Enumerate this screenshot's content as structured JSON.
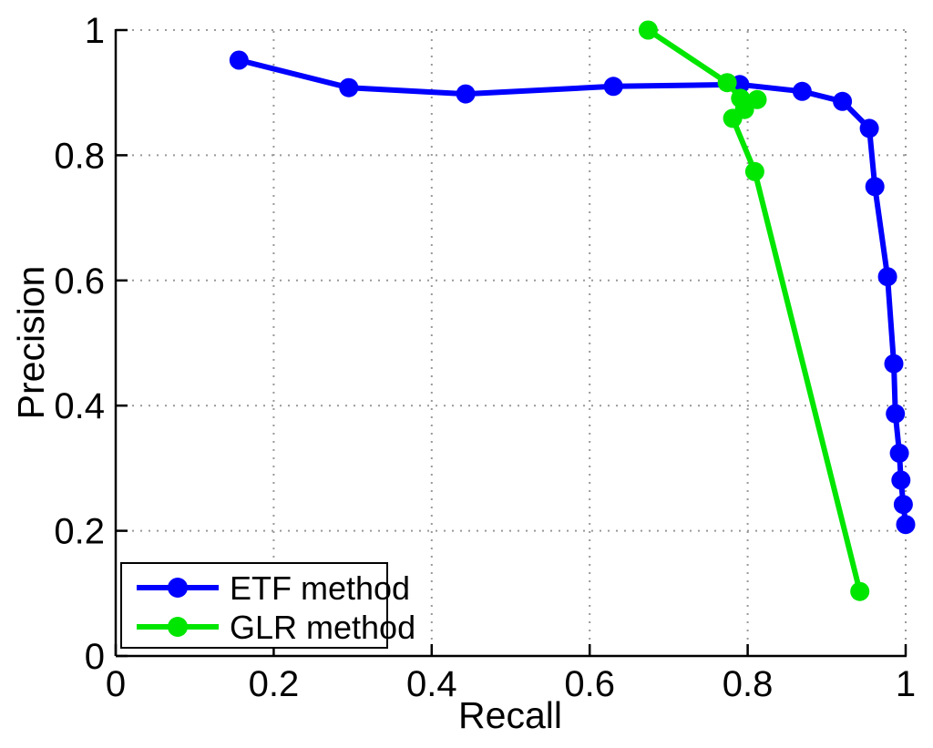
{
  "chart_data": {
    "type": "line",
    "title": "",
    "xlabel": "Recall",
    "ylabel": "Precision",
    "xlim": [
      0,
      1
    ],
    "ylim": [
      0,
      1
    ],
    "grid": "dotted",
    "legend_position": "bottom-left",
    "xticks": {
      "values": [
        0,
        0.2,
        0.4,
        0.6,
        0.8,
        1
      ],
      "labels": [
        "0",
        "0.2",
        "0.4",
        "0.6",
        "0.8",
        "1"
      ]
    },
    "yticks": {
      "values": [
        0,
        0.2,
        0.4,
        0.6,
        0.8,
        1
      ],
      "labels": [
        "0",
        "0.2",
        "0.4",
        "0.6",
        "0.8",
        "1"
      ]
    },
    "series": [
      {
        "name": "ETF method",
        "color": "#0000ff",
        "marker": "circle",
        "points": [
          [
            0.156,
            0.952
          ],
          [
            0.295,
            0.908
          ],
          [
            0.443,
            0.898
          ],
          [
            0.63,
            0.91
          ],
          [
            0.79,
            0.913
          ],
          [
            0.869,
            0.902
          ],
          [
            0.92,
            0.886
          ],
          [
            0.954,
            0.843
          ],
          [
            0.961,
            0.75
          ],
          [
            0.977,
            0.606
          ],
          [
            0.985,
            0.467
          ],
          [
            0.987,
            0.387
          ],
          [
            0.992,
            0.324
          ],
          [
            0.994,
            0.281
          ],
          [
            0.997,
            0.242
          ],
          [
            1.0,
            0.21
          ]
        ]
      },
      {
        "name": "GLR method",
        "color": "#00e600",
        "marker": "circle",
        "points": [
          [
            0.674,
            1.0
          ],
          [
            0.774,
            0.916
          ],
          [
            0.791,
            0.891
          ],
          [
            0.812,
            0.889
          ],
          [
            0.796,
            0.873
          ],
          [
            0.781,
            0.859
          ],
          [
            0.809,
            0.774
          ],
          [
            0.942,
            0.103
          ]
        ]
      }
    ]
  },
  "colors": {
    "axis": "#000000",
    "grid": "#999999",
    "background": "#ffffff"
  }
}
